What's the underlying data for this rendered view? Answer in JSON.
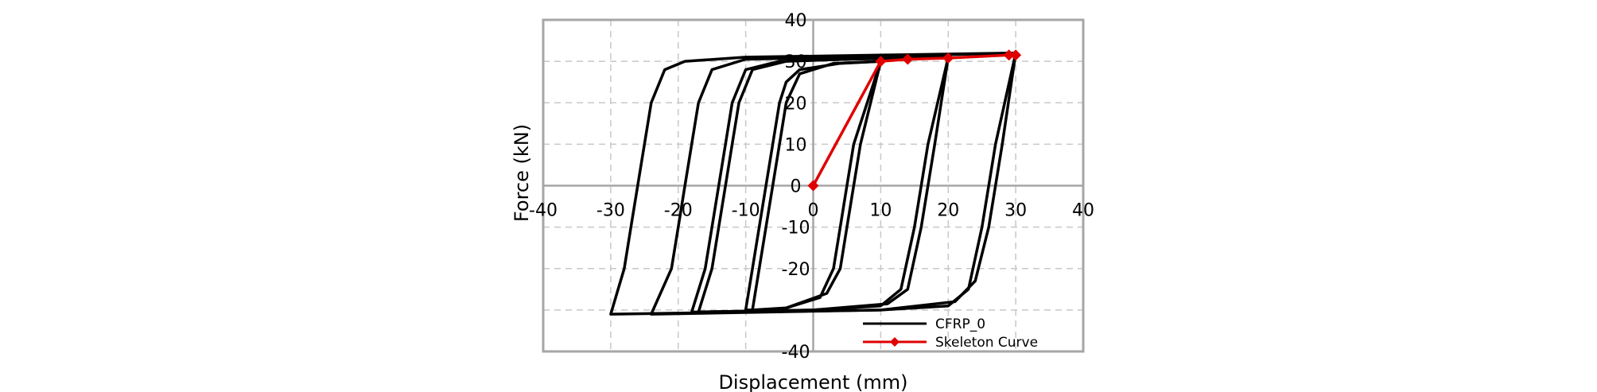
{
  "chart_data": {
    "type": "line",
    "title": "",
    "xlabel": "Displacement (mm)",
    "ylabel": "Force (kN)",
    "xlim": [
      -40,
      40
    ],
    "ylim": [
      -40,
      40
    ],
    "xticks": [
      -40,
      -30,
      -20,
      -10,
      0,
      10,
      20,
      30,
      40
    ],
    "yticks": [
      -40,
      -20,
      -10,
      0,
      10,
      20,
      30,
      40
    ],
    "grid": true,
    "legend_position": "bottom-right",
    "series": [
      {
        "name": "CFRP_0",
        "color": "#000000",
        "marker": "none",
        "loops": [
          [
            [
              10,
              30
            ],
            [
              6,
              10
            ],
            [
              5,
              0
            ],
            [
              4,
              -10
            ],
            [
              3,
              -20
            ],
            [
              1,
              -27
            ],
            [
              -5,
              -30
            ],
            [
              -10,
              -30
            ],
            [
              -9,
              -20
            ],
            [
              -8,
              -10
            ],
            [
              -7,
              0
            ],
            [
              -6,
              10
            ],
            [
              -5,
              20
            ],
            [
              -4,
              25
            ],
            [
              -2,
              28
            ],
            [
              4,
              29.5
            ],
            [
              10,
              30
            ]
          ],
          [
            [
              10,
              30
            ],
            [
              7,
              10
            ],
            [
              6,
              0
            ],
            [
              5,
              -10
            ],
            [
              4,
              -20
            ],
            [
              2,
              -26
            ],
            [
              -4,
              -29.5
            ],
            [
              -9,
              -30
            ],
            [
              -8,
              -20
            ],
            [
              -7,
              -10
            ],
            [
              -6,
              0
            ],
            [
              -5,
              10
            ],
            [
              -4,
              20
            ],
            [
              -2,
              27
            ],
            [
              3,
              29.5
            ],
            [
              10,
              30
            ]
          ],
          [
            [
              20,
              31
            ],
            [
              17,
              10
            ],
            [
              16,
              0
            ],
            [
              15,
              -10
            ],
            [
              13,
              -25
            ],
            [
              10,
              -29
            ],
            [
              0,
              -30
            ],
            [
              -18,
              -30.5
            ],
            [
              -16,
              -20
            ],
            [
              -15,
              -10
            ],
            [
              -14,
              0
            ],
            [
              -13,
              10
            ],
            [
              -12,
              20
            ],
            [
              -10,
              28
            ],
            [
              -5,
              30
            ],
            [
              5,
              30.5
            ],
            [
              20,
              31
            ]
          ],
          [
            [
              20,
              31
            ],
            [
              18,
              10
            ],
            [
              17,
              0
            ],
            [
              16,
              -10
            ],
            [
              14,
              -25
            ],
            [
              11,
              -28.5
            ],
            [
              0,
              -30
            ],
            [
              -17,
              -30.5
            ],
            [
              -15,
              -20
            ],
            [
              -14,
              -10
            ],
            [
              -13,
              0
            ],
            [
              -12,
              10
            ],
            [
              -11,
              20
            ],
            [
              -9,
              28
            ],
            [
              -4,
              30
            ],
            [
              5,
              30.5
            ],
            [
              20,
              31
            ]
          ],
          [
            [
              30,
              32
            ],
            [
              27,
              10
            ],
            [
              26,
              0
            ],
            [
              25,
              -10
            ],
            [
              23,
              -25
            ],
            [
              20,
              -29
            ],
            [
              10,
              -30
            ],
            [
              -24,
              -31
            ],
            [
              -21,
              -20
            ],
            [
              -20,
              -10
            ],
            [
              -19,
              0
            ],
            [
              -18,
              10
            ],
            [
              -17,
              20
            ],
            [
              -15,
              28
            ],
            [
              -10,
              30.5
            ],
            [
              5,
              31
            ],
            [
              30,
              32
            ]
          ],
          [
            [
              30,
              32
            ],
            [
              28,
              10
            ],
            [
              27,
              0
            ],
            [
              26,
              -10
            ],
            [
              24,
              -23
            ],
            [
              21,
              -28
            ],
            [
              10,
              -30
            ],
            [
              -30,
              -31
            ],
            [
              -28,
              -20
            ],
            [
              -27,
              -10
            ],
            [
              -26,
              0
            ],
            [
              -25,
              10
            ],
            [
              -24,
              20
            ],
            [
              -22,
              28
            ],
            [
              -19,
              30
            ],
            [
              -10,
              31
            ],
            [
              10,
              31.5
            ],
            [
              30,
              32
            ]
          ]
        ]
      },
      {
        "name": "Skeleton Curve",
        "color": "#e00000",
        "marker": "diamond",
        "points": [
          [
            0,
            0
          ],
          [
            10,
            30
          ],
          [
            14,
            30.5
          ],
          [
            20,
            30.8
          ],
          [
            29,
            31.5
          ],
          [
            30,
            31.5
          ]
        ]
      }
    ]
  }
}
